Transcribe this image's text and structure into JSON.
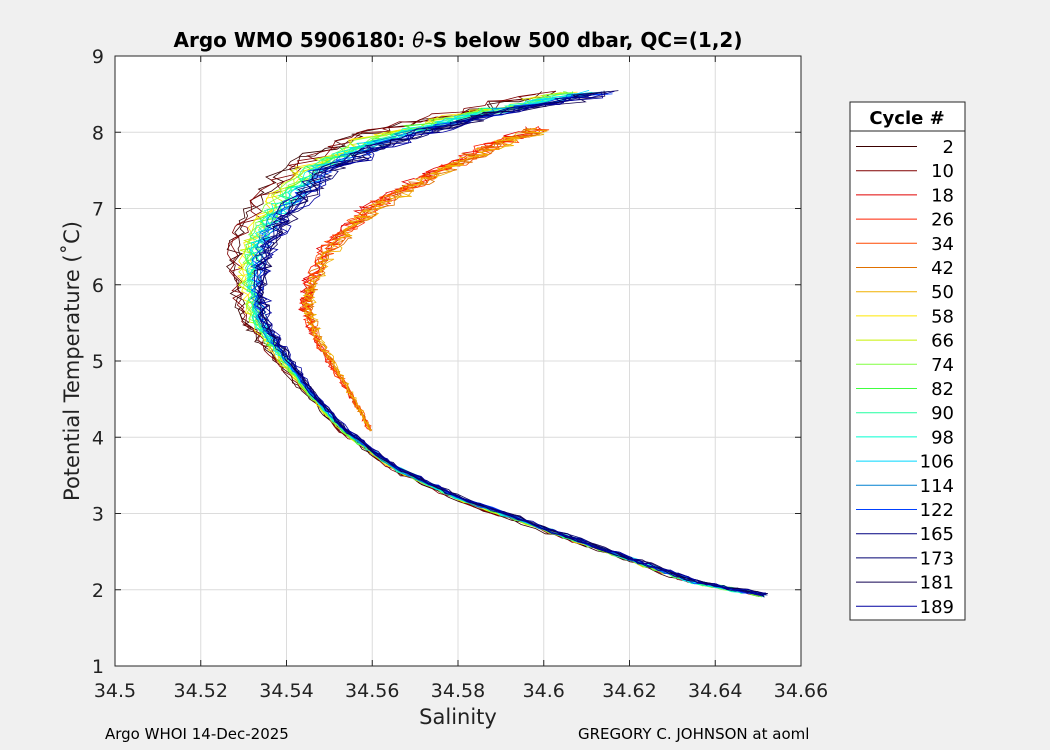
{
  "footer": {
    "left": "Argo WHOI 14-Dec-2025",
    "right": "GREGORY C. JOHNSON at aoml"
  },
  "chart_data": {
    "type": "line",
    "title_prefix": "Argo WMO 5906180: ",
    "title_theta": "θ",
    "title_suffix": "-S below 500 dbar,  QC=(1,2)",
    "xlabel": "Salinity",
    "ylabel": "Potential Temperature (˚C)",
    "xlim": [
      34.5,
      34.66
    ],
    "ylim": [
      1,
      9
    ],
    "xticks": [
      "34.5",
      "34.52",
      "34.54",
      "34.56",
      "34.58",
      "34.6",
      "34.62",
      "34.64",
      "34.66"
    ],
    "yticks": [
      "1",
      "2",
      "3",
      "4",
      "5",
      "6",
      "7",
      "8",
      "9"
    ],
    "grid": true,
    "legend_title": "Cycle #",
    "legend_position": "right-outside",
    "series": [
      {
        "name": "2",
        "color": "#3a0000"
      },
      {
        "name": "10",
        "color": "#800000"
      },
      {
        "name": "18",
        "color": "#e00000"
      },
      {
        "name": "26",
        "color": "#ff2000"
      },
      {
        "name": "34",
        "color": "#ff4800"
      },
      {
        "name": "42",
        "color": "#e07000"
      },
      {
        "name": "50",
        "color": "#f0b000"
      },
      {
        "name": "58",
        "color": "#ffe800"
      },
      {
        "name": "66",
        "color": "#c8f000"
      },
      {
        "name": "74",
        "color": "#80ff40"
      },
      {
        "name": "82",
        "color": "#40ff40"
      },
      {
        "name": "90",
        "color": "#20ffa0"
      },
      {
        "name": "98",
        "color": "#00ffd0"
      },
      {
        "name": "106",
        "color": "#00d8ff"
      },
      {
        "name": "114",
        "color": "#0080d0"
      },
      {
        "name": "122",
        "color": "#0040ff"
      },
      {
        "name": "165",
        "color": "#000080"
      },
      {
        "name": "173",
        "color": "#000070"
      },
      {
        "name": "181",
        "color": "#100050"
      },
      {
        "name": "189",
        "color": "#0000a0"
      }
    ],
    "profile_envelope": {
      "note_units": "salinity, potential temperature",
      "centerline": [
        [
          34.651,
          1.93
        ],
        [
          34.635,
          2.1
        ],
        [
          34.62,
          2.4
        ],
        [
          34.6,
          2.8
        ],
        [
          34.58,
          3.2
        ],
        [
          34.565,
          3.6
        ],
        [
          34.553,
          4.1
        ],
        [
          34.545,
          4.6
        ],
        [
          34.538,
          5.1
        ],
        [
          34.533,
          5.5
        ],
        [
          34.531,
          6.0
        ],
        [
          34.532,
          6.5
        ],
        [
          34.537,
          7.0
        ],
        [
          34.545,
          7.5
        ],
        [
          34.56,
          7.9
        ],
        [
          34.58,
          8.2
        ],
        [
          34.608,
          8.52
        ]
      ],
      "red_branch": [
        [
          34.56,
          4.1
        ],
        [
          34.556,
          4.5
        ],
        [
          34.552,
          4.9
        ],
        [
          34.548,
          5.3
        ],
        [
          34.546,
          5.7
        ],
        [
          34.547,
          6.0
        ],
        [
          34.552,
          6.5
        ],
        [
          34.562,
          7.0
        ],
        [
          34.575,
          7.4
        ],
        [
          34.59,
          7.8
        ],
        [
          34.602,
          8.05
        ]
      ],
      "spread": 0.012
    }
  }
}
